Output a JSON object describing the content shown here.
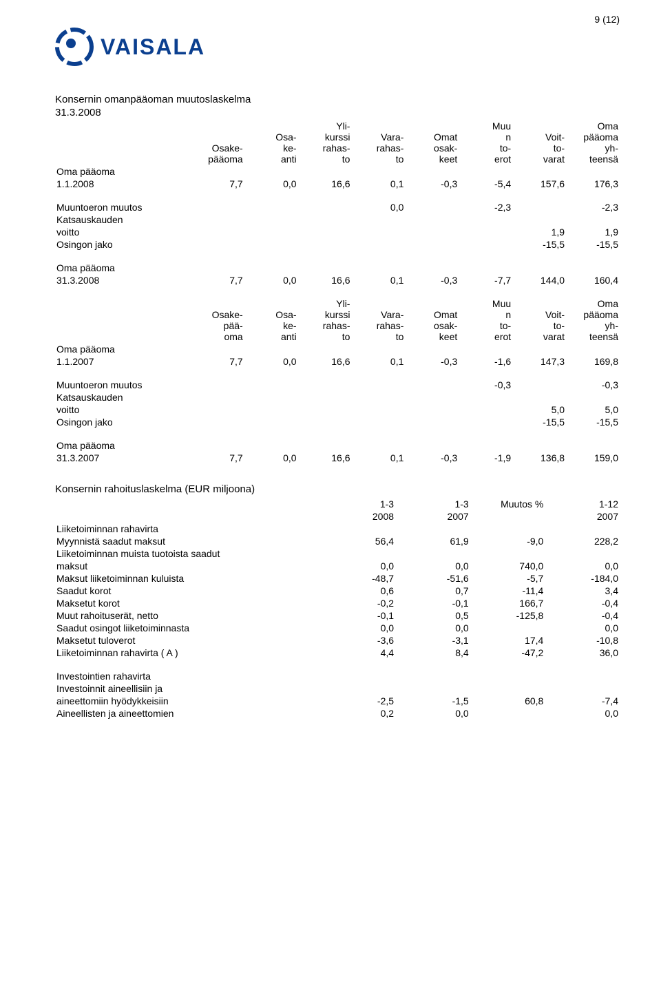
{
  "page_number": "9 (12)",
  "logo_text": "VAISALA",
  "section_title_1": "Konsernin omanpääoman muutoslaskelma",
  "section_title_date": "31.3.2008",
  "equity_headers": [
    "",
    "Osake-pääoma",
    "Osa-ke-anti",
    "Yli-kurssi rahas-to",
    "Vara-rahas-to",
    "Omat osak-keet",
    "Muu n to-erot",
    "Voit-to-varat",
    "Oma pääoma yh-teensä"
  ],
  "tableA": {
    "row_open_label1": "Oma pääoma",
    "row_open_label2": "1.1.2008",
    "row_open": [
      "7,7",
      "0,0",
      "16,6",
      "0,1",
      "-0,3",
      "-5,4",
      "157,6",
      "176,3"
    ],
    "row_translation_label": "Muuntoeron muutos",
    "row_translation": [
      "",
      "",
      "",
      "0,0",
      "",
      "-2,3",
      "",
      "-2,3"
    ],
    "row_profit_label1": "Katsauskauden",
    "row_profit_label2": "voitto",
    "row_profit": [
      "",
      "",
      "",
      "",
      "",
      "",
      "1,9",
      "1,9"
    ],
    "row_dividend_label": "Osingon jako",
    "row_dividend": [
      "",
      "",
      "",
      "",
      "",
      "",
      "-15,5",
      "-15,5"
    ],
    "row_close_label1": "Oma pääoma",
    "row_close_label2": "31.3.2008",
    "row_close": [
      "7,7",
      "0,0",
      "16,6",
      "0,1",
      "-0,3",
      "-7,7",
      "144,0",
      "160,4"
    ]
  },
  "tableB": {
    "row_open_label1": "Oma pääoma",
    "row_open_label2": "1.1.2007",
    "row_open": [
      "7,7",
      "0,0",
      "16,6",
      "0,1",
      "-0,3",
      "-1,6",
      "147,3",
      "169,8"
    ],
    "row_translation_label": "Muuntoeron muutos",
    "row_translation": [
      "",
      "",
      "",
      "",
      "",
      "-0,3",
      "",
      "-0,3"
    ],
    "row_profit_label1": "Katsauskauden",
    "row_profit_label2": "voitto",
    "row_profit": [
      "",
      "",
      "",
      "",
      "",
      "",
      "5,0",
      "5,0"
    ],
    "row_dividend_label": "Osingon jako",
    "row_dividend": [
      "",
      "",
      "",
      "",
      "",
      "",
      "-15,5",
      "-15,5"
    ],
    "row_close_label1": "Oma pääoma",
    "row_close_label2": "31.3.2007",
    "row_close": [
      "7,7",
      "0,0",
      "16,6",
      "0,1",
      "-0,3",
      "-1,9",
      "136,8",
      "159,0"
    ]
  },
  "cashflow_title": "Konsernin rahoituslaskelma (EUR miljoona)",
  "cashflow_headers_r1": [
    "",
    "1-3",
    "1-3",
    "Muutos %",
    "1-12"
  ],
  "cashflow_headers_r2": [
    "",
    "2008",
    "2007",
    "",
    "2007"
  ],
  "cashflow_rows": [
    {
      "label": "Liiketoiminnan rahavirta",
      "cells": [
        "",
        "",
        "",
        ""
      ]
    },
    {
      "label": "Myynnistä saadut maksut",
      "cells": [
        "56,4",
        "61,9",
        "-9,0",
        "228,2"
      ]
    },
    {
      "label": "Liiketoiminnan muista tuotoista saadut",
      "cells": [
        "",
        "",
        "",
        ""
      ]
    },
    {
      "label": "maksut",
      "cells": [
        "0,0",
        "0,0",
        "740,0",
        "0,0"
      ]
    },
    {
      "label": "Maksut liiketoiminnan kuluista",
      "cells": [
        "-48,7",
        "-51,6",
        "-5,7",
        "-184,0"
      ]
    },
    {
      "label": "Saadut korot",
      "cells": [
        "0,6",
        "0,7",
        "-11,4",
        "3,4"
      ]
    },
    {
      "label": "Maksetut korot",
      "cells": [
        "-0,2",
        "-0,1",
        "166,7",
        "-0,4"
      ]
    },
    {
      "label": "Muut rahoituserät, netto",
      "cells": [
        "-0,1",
        "0,5",
        "-125,8",
        "-0,4"
      ]
    },
    {
      "label": "Saadut osingot liiketoiminnasta",
      "cells": [
        "0,0",
        "0,0",
        "",
        "0,0"
      ]
    },
    {
      "label": "Maksetut tuloverot",
      "cells": [
        "-3,6",
        "-3,1",
        "17,4",
        "-10,8"
      ]
    },
    {
      "label": "Liiketoiminnan rahavirta ( A )",
      "cells": [
        "4,4",
        "8,4",
        "-47,2",
        "36,0"
      ]
    }
  ],
  "invest_rows": [
    {
      "label": "Investointien rahavirta",
      "cells": [
        "",
        "",
        "",
        ""
      ]
    },
    {
      "label": "Investoinnit aineellisiin ja",
      "cells": [
        "",
        "",
        "",
        ""
      ]
    },
    {
      "label": "aineettomiin hyödykkeisiin",
      "cells": [
        "-2,5",
        "-1,5",
        "60,8",
        "-7,4"
      ]
    },
    {
      "label": "Aineellisten ja aineettomien",
      "cells": [
        "0,2",
        "0,0",
        "",
        "0,0"
      ]
    }
  ]
}
